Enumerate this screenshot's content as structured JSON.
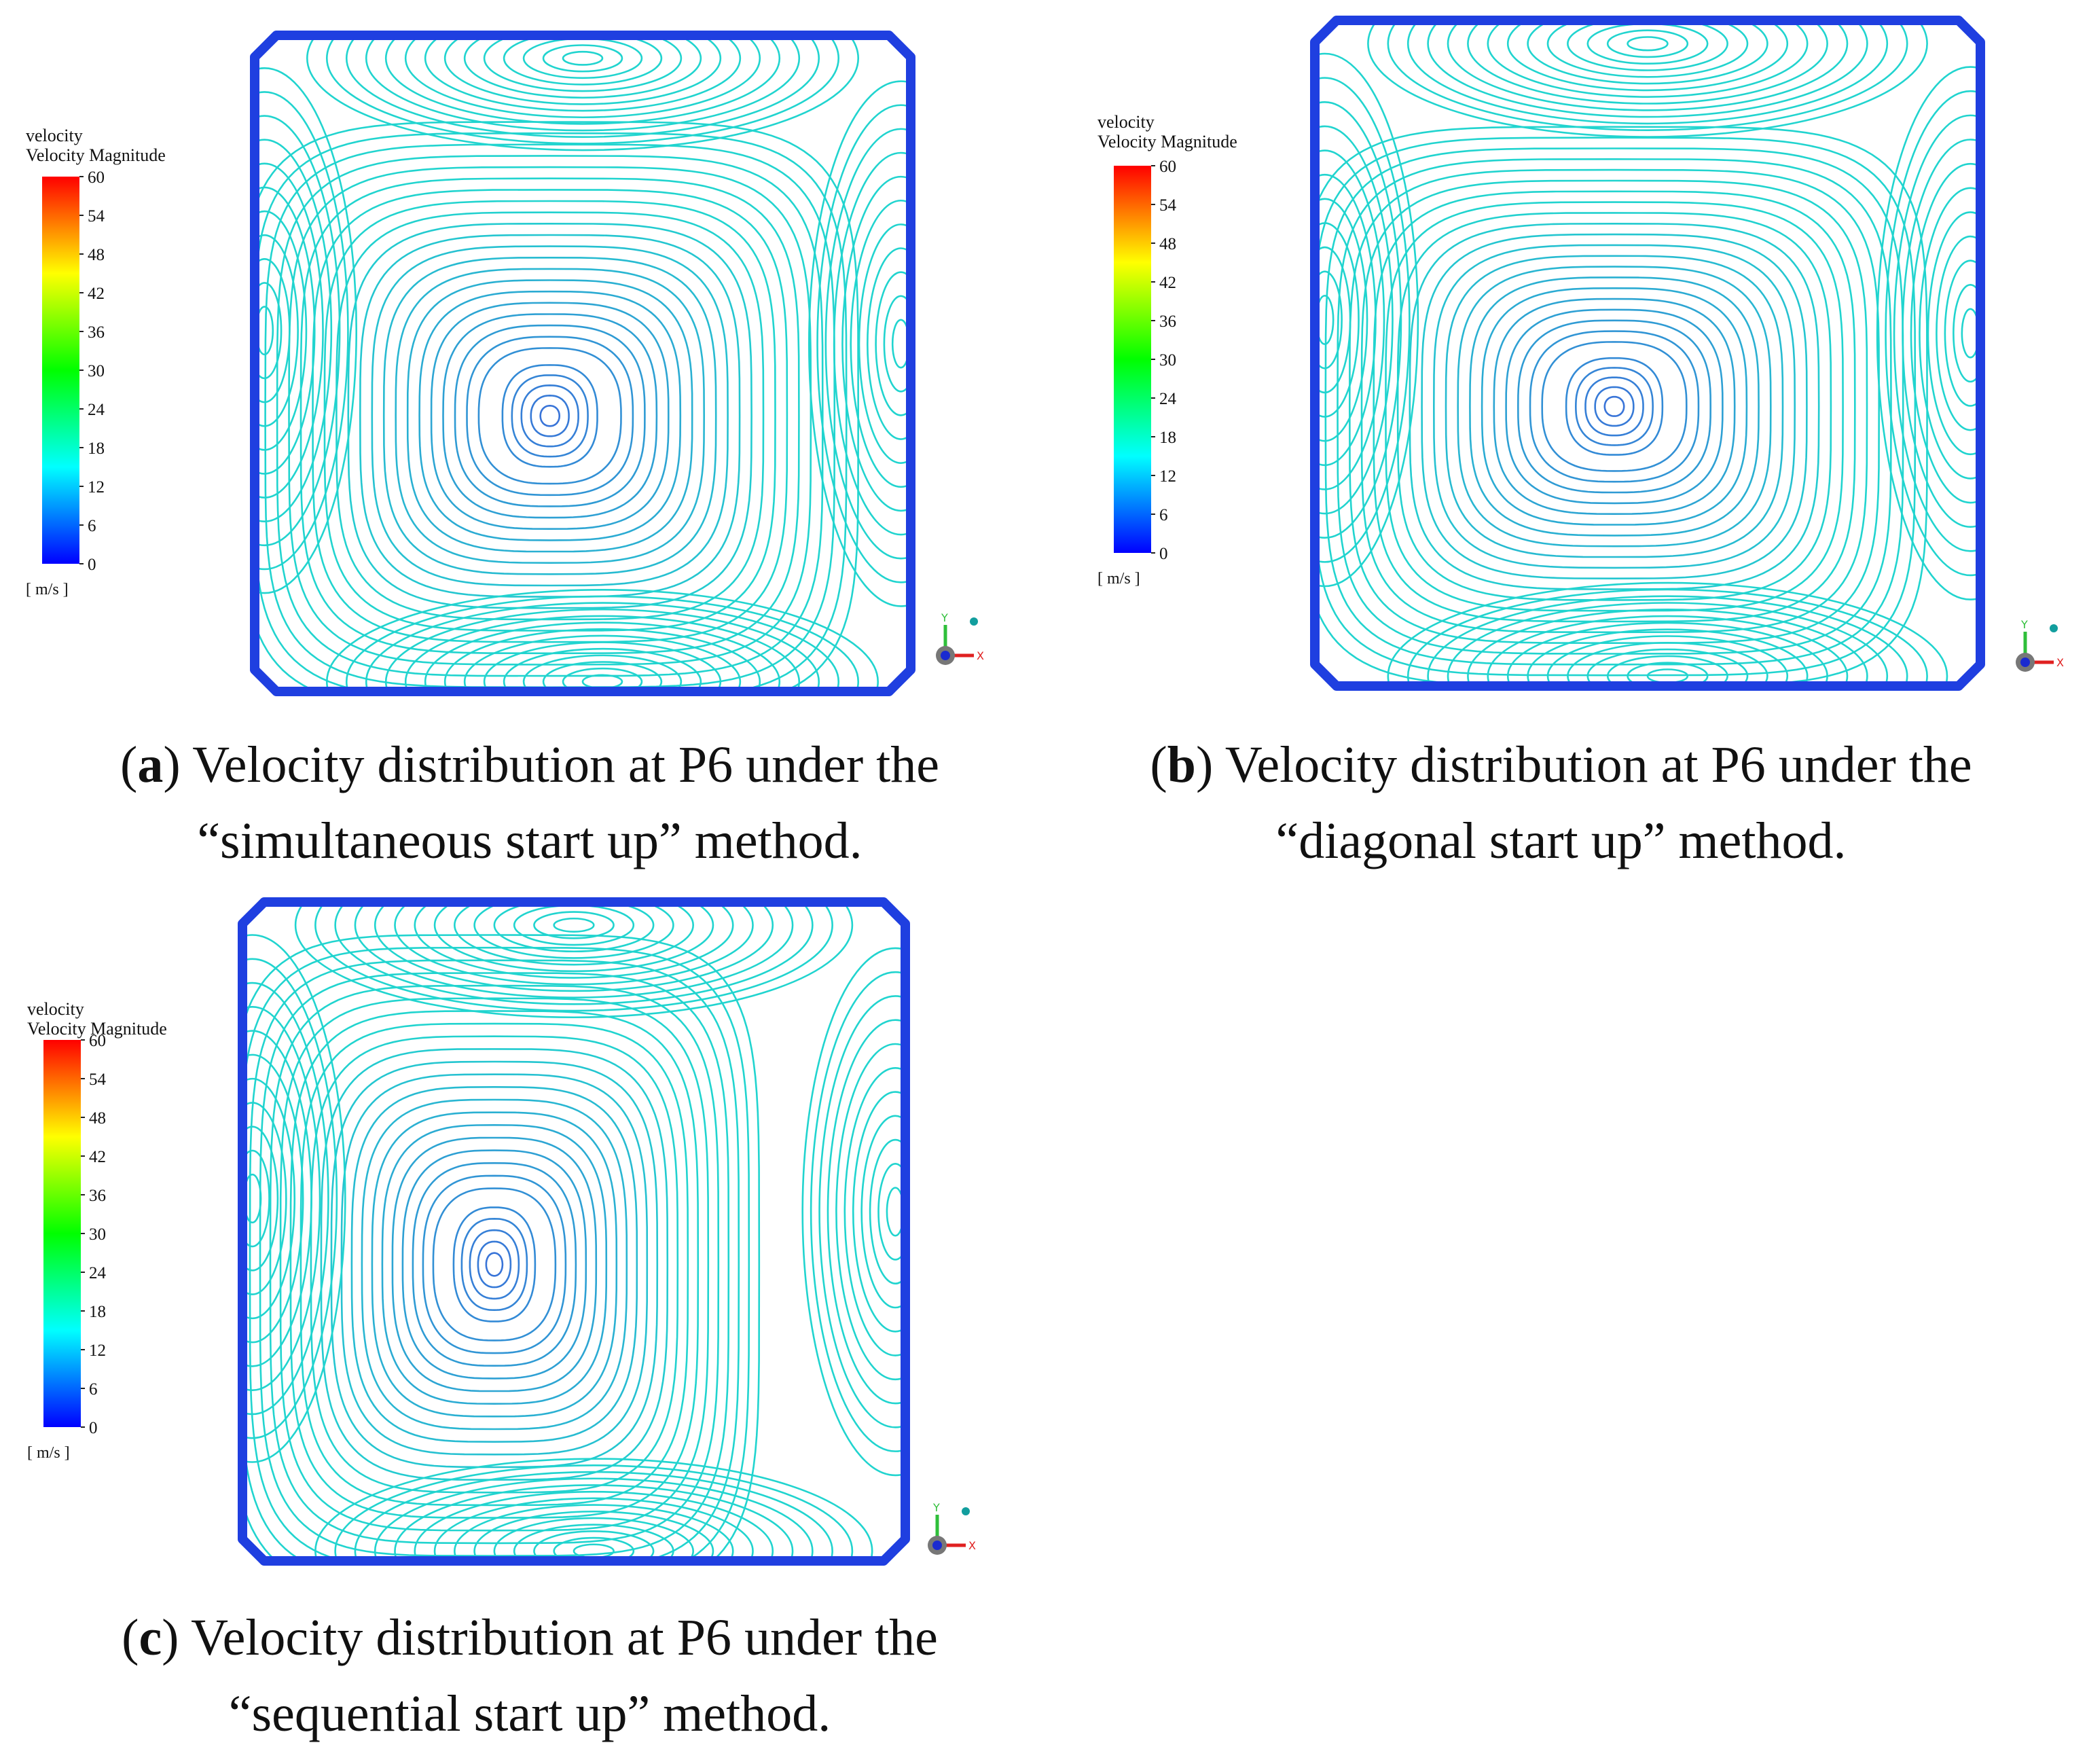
{
  "panels": [
    {
      "letter": "a",
      "caption_line1": "Velocity distribution at P6 under the",
      "caption_line2": "“simultaneous start up” method.",
      "vortex_center": [
        0.45,
        0.58
      ],
      "vortex_stretch": [
        1.0,
        1.12
      ]
    },
    {
      "letter": "b",
      "caption_line1": "Velocity distribution at P6 under the",
      "caption_line2": "“diagonal start up” method.",
      "vortex_center": [
        0.45,
        0.58
      ],
      "vortex_stretch": [
        1.0,
        1.05
      ]
    },
    {
      "letter": "c",
      "caption_line1": "Velocity distribution at P6 under the",
      "caption_line2": "“sequential start up” method.",
      "vortex_center": [
        0.38,
        0.55
      ],
      "vortex_stretch": [
        0.85,
        1.25
      ]
    }
  ],
  "legend": {
    "variable": "velocity",
    "quantity": "Velocity Magnitude",
    "unit": "[ m/s ]",
    "ticks": [
      "60",
      "54",
      "48",
      "42",
      "36",
      "30",
      "24",
      "18",
      "12",
      "6",
      "0"
    ],
    "min": 0,
    "max": 60
  },
  "colors": {
    "border": "#1f3fe0",
    "contour_outer": "#21d4cf",
    "contour_inner": "#3a6fd8",
    "colormap": [
      "#0000ff",
      "#0080ff",
      "#00ffff",
      "#00ff80",
      "#00ff00",
      "#80ff00",
      "#ffff00",
      "#ff8000",
      "#ff0000"
    ]
  },
  "axis_triad": {
    "y_label": "Y",
    "x_label": "X"
  }
}
